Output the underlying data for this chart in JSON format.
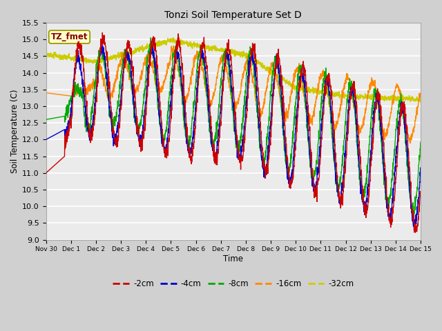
{
  "title": "Tonzi Soil Temperature Set D",
  "xlabel": "Time",
  "ylabel": "Soil Temperature (C)",
  "ylim": [
    9.0,
    15.5
  ],
  "fig_bg": "#d0d0d0",
  "plot_bg": "#ebebeb",
  "legend_label": "TZ_fmet",
  "series_labels": [
    "-2cm",
    "-4cm",
    "-8cm",
    "-16cm",
    "-32cm"
  ],
  "series_colors": [
    "#cc0000",
    "#0000cc",
    "#00aa00",
    "#ff8800",
    "#cccc00"
  ],
  "tick_labels": [
    "Nov 30",
    "Dec 1",
    "Dec 2",
    "Dec 3",
    "Dec 4",
    "Dec 5",
    "Dec 6",
    "Dec 7",
    "Dec 8",
    "Dec 9",
    "Dec 10",
    "Dec 11",
    "Dec 12",
    "Dec 13",
    "Dec 14",
    "Dec 15"
  ],
  "yticks": [
    9.0,
    9.5,
    10.0,
    10.5,
    11.0,
    11.5,
    12.0,
    12.5,
    13.0,
    13.5,
    14.0,
    14.5,
    15.0,
    15.5
  ]
}
